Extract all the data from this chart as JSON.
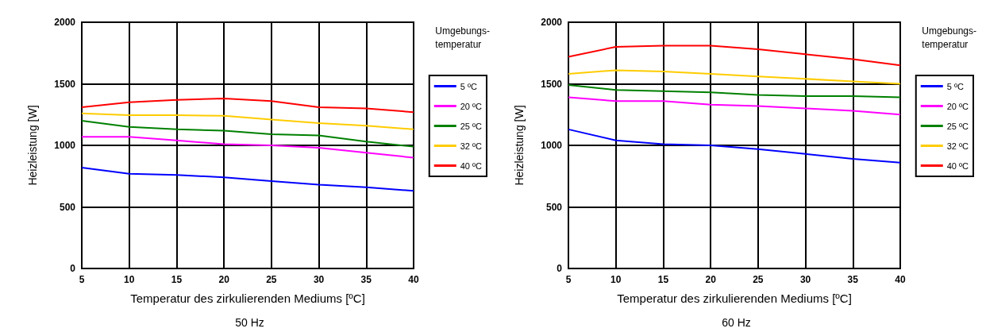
{
  "chart_data": [
    {
      "type": "line",
      "title": "50 Hz",
      "xlabel": "Temperatur des zirkulierenden Mediums [ºC]",
      "ylabel": "Heizleistung [W]",
      "legend_title": "Umgebungs-\ntemperatur",
      "x": [
        5,
        10,
        15,
        20,
        25,
        30,
        35,
        40
      ],
      "series": [
        {
          "name": "5 ºC",
          "color": "#0000ff",
          "values": [
            820,
            770,
            760,
            740,
            710,
            680,
            660,
            630
          ]
        },
        {
          "name": "20 ºC",
          "color": "#ff00ff",
          "values": [
            1070,
            1070,
            1040,
            1010,
            1000,
            980,
            940,
            900
          ]
        },
        {
          "name": "25 ºC",
          "color": "#008000",
          "values": [
            1200,
            1150,
            1130,
            1120,
            1090,
            1080,
            1030,
            990
          ]
        },
        {
          "name": "32 ºC",
          "color": "#ffcc00",
          "values": [
            1260,
            1245,
            1245,
            1240,
            1210,
            1180,
            1160,
            1130
          ]
        },
        {
          "name": "40 ºC",
          "color": "#ff0000",
          "values": [
            1310,
            1350,
            1370,
            1380,
            1360,
            1310,
            1300,
            1270
          ]
        }
      ],
      "xlim": [
        5,
        40
      ],
      "xticks": [
        5,
        10,
        15,
        20,
        25,
        30,
        35,
        40
      ],
      "ylim": [
        0,
        2000
      ],
      "yticks": [
        0,
        500,
        1000,
        1500,
        2000
      ],
      "grid": true,
      "legend": "right"
    },
    {
      "type": "line",
      "title": "60 Hz",
      "xlabel": "Temperatur des zirkulierenden Mediums [ºC]",
      "ylabel": "Heizleistung [W]",
      "legend_title": "Umgebungs-\ntemperatur",
      "x": [
        5,
        10,
        15,
        20,
        25,
        30,
        35,
        40
      ],
      "series": [
        {
          "name": "5 ºC",
          "color": "#0000ff",
          "values": [
            1130,
            1040,
            1010,
            1000,
            970,
            930,
            890,
            860
          ]
        },
        {
          "name": "20 ºC",
          "color": "#ff00ff",
          "values": [
            1390,
            1360,
            1360,
            1330,
            1320,
            1300,
            1280,
            1250
          ]
        },
        {
          "name": "25 ºC",
          "color": "#008000",
          "values": [
            1490,
            1450,
            1440,
            1430,
            1410,
            1400,
            1400,
            1390
          ]
        },
        {
          "name": "32 ºC",
          "color": "#ffcc00",
          "values": [
            1580,
            1610,
            1600,
            1580,
            1560,
            1540,
            1520,
            1500
          ]
        },
        {
          "name": "40 ºC",
          "color": "#ff0000",
          "values": [
            1720,
            1800,
            1810,
            1810,
            1780,
            1740,
            1700,
            1650
          ]
        }
      ],
      "xlim": [
        5,
        40
      ],
      "xticks": [
        5,
        10,
        15,
        20,
        25,
        30,
        35,
        40
      ],
      "ylim": [
        0,
        2000
      ],
      "yticks": [
        0,
        500,
        1000,
        1500,
        2000
      ],
      "grid": true,
      "legend": "right"
    }
  ]
}
